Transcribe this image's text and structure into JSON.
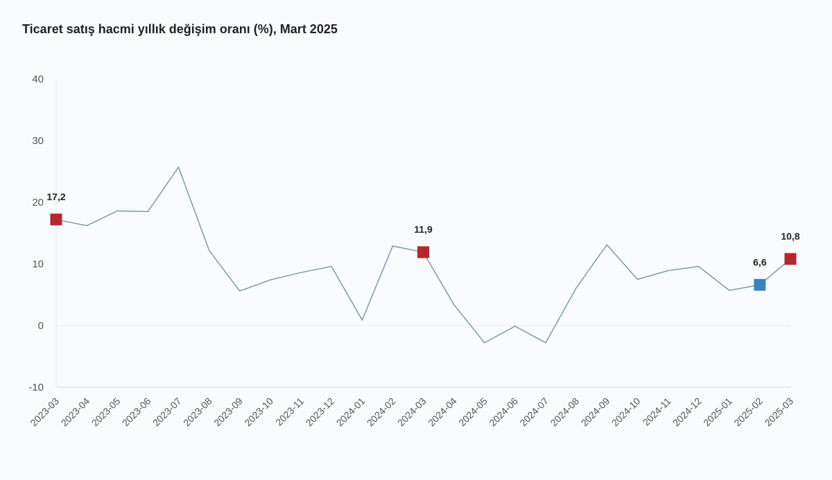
{
  "chart_data": {
    "type": "line",
    "title": "Ticaret satış hacmi yıllık değişim oranı (%), Mart 2025",
    "xlabel": "",
    "ylabel": "",
    "ylim": [
      -10,
      40
    ],
    "yticks": [
      -10,
      0,
      10,
      20,
      30,
      40
    ],
    "grid": false,
    "categories": [
      "2023-03",
      "2023-04",
      "2023-05",
      "2023-06",
      "2023-07",
      "2023-08",
      "2023-09",
      "2023-10",
      "2023-11",
      "2023-12",
      "2024-01",
      "2024-02",
      "2024-03",
      "2024-04",
      "2024-05",
      "2024-06",
      "2024-07",
      "2024-08",
      "2024-09",
      "2024-10",
      "2024-11",
      "2024-12",
      "2025-01",
      "2025-02",
      "2025-03"
    ],
    "series": [
      {
        "values": [
          17.2,
          16.2,
          18.6,
          18.5,
          25.7,
          12.2,
          5.6,
          7.4,
          8.6,
          9.6,
          0.9,
          12.9,
          11.9,
          3.4,
          -2.8,
          -0.1,
          -2.8,
          6.1,
          13.1,
          7.5,
          8.9,
          9.6,
          5.7,
          6.6,
          10.8
        ],
        "color": "#6f97a4"
      }
    ],
    "highlights": [
      {
        "category": "2023-03",
        "value": 17.2,
        "label": "17,2",
        "color": "#b5272d"
      },
      {
        "category": "2024-03",
        "value": 11.9,
        "label": "11,9",
        "color": "#b5272d"
      },
      {
        "category": "2025-02",
        "value": 6.6,
        "label": "6,6",
        "color": "#3a84c0"
      },
      {
        "category": "2025-03",
        "value": 10.8,
        "label": "10,8",
        "color": "#b5272d"
      }
    ]
  }
}
